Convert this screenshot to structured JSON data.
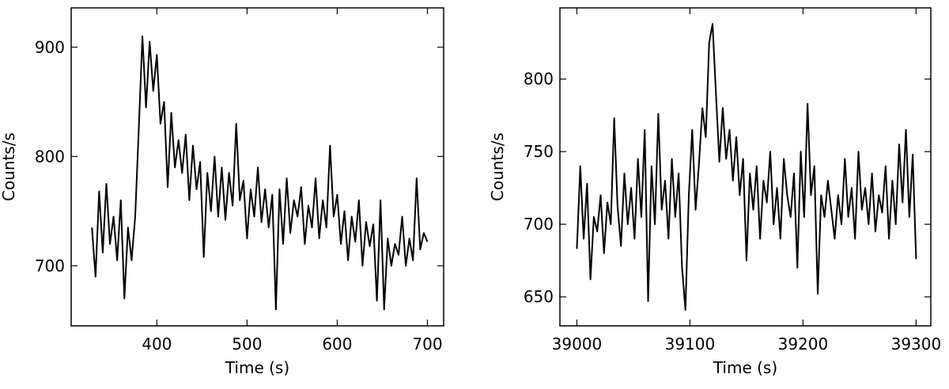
{
  "chart_data": [
    {
      "type": "line",
      "xlabel": "Time (s)",
      "ylabel": "Counts/s",
      "xlim": [
        305,
        718
      ],
      "ylim": [
        645,
        936
      ],
      "xticks": [
        400,
        500,
        600,
        700
      ],
      "yticks": [
        700,
        800,
        900
      ],
      "x": [
        328,
        332,
        336,
        340,
        344,
        348,
        352,
        356,
        360,
        364,
        368,
        372,
        376,
        380,
        384,
        388,
        392,
        396,
        400,
        404,
        408,
        412,
        416,
        420,
        424,
        428,
        432,
        436,
        440,
        444,
        448,
        452,
        456,
        460,
        464,
        468,
        472,
        476,
        480,
        484,
        488,
        492,
        496,
        500,
        504,
        508,
        512,
        516,
        520,
        524,
        528,
        532,
        536,
        540,
        544,
        548,
        552,
        556,
        560,
        564,
        568,
        572,
        576,
        580,
        584,
        588,
        592,
        596,
        600,
        604,
        608,
        612,
        616,
        620,
        624,
        628,
        632,
        636,
        640,
        644,
        648,
        652,
        656,
        660,
        664,
        668,
        672,
        676,
        680,
        684,
        688,
        692,
        696,
        700
      ],
      "series": [
        {
          "color": "#000000",
          "values": [
            735,
            690,
            768,
            712,
            775,
            720,
            745,
            705,
            760,
            670,
            735,
            705,
            745,
            826,
            910,
            845,
            905,
            860,
            893,
            830,
            850,
            772,
            840,
            790,
            815,
            785,
            820,
            760,
            810,
            770,
            795,
            708,
            785,
            750,
            800,
            745,
            790,
            742,
            785,
            755,
            830,
            760,
            778,
            725,
            770,
            745,
            790,
            740,
            770,
            735,
            765,
            660,
            770,
            720,
            780,
            730,
            760,
            745,
            772,
            720,
            755,
            735,
            780,
            725,
            760,
            735,
            810,
            745,
            765,
            720,
            750,
            705,
            745,
            722,
            760,
            700,
            740,
            718,
            738,
            668,
            760,
            660,
            725,
            700,
            720,
            710,
            745,
            700,
            725,
            705,
            780,
            715,
            730,
            722
          ]
        }
      ]
    },
    {
      "type": "line",
      "xlabel": "Time (s)",
      "ylabel": "Counts/s",
      "xlim": [
        38985,
        39313
      ],
      "ylim": [
        630,
        849
      ],
      "xticks": [
        39000,
        39100,
        39200,
        39300
      ],
      "yticks": [
        650,
        700,
        750,
        800
      ],
      "x": [
        39000,
        39003,
        39006,
        39009,
        39012,
        39015,
        39018,
        39021,
        39024,
        39027,
        39030,
        39033,
        39036,
        39039,
        39042,
        39045,
        39048,
        39051,
        39054,
        39057,
        39060,
        39063,
        39066,
        39069,
        39072,
        39075,
        39078,
        39081,
        39084,
        39087,
        39090,
        39093,
        39096,
        39099,
        39102,
        39105,
        39108,
        39111,
        39114,
        39117,
        39120,
        39123,
        39126,
        39129,
        39132,
        39135,
        39138,
        39141,
        39144,
        39147,
        39150,
        39153,
        39156,
        39159,
        39162,
        39165,
        39168,
        39171,
        39174,
        39177,
        39180,
        39183,
        39186,
        39189,
        39192,
        39195,
        39198,
        39201,
        39204,
        39207,
        39210,
        39213,
        39216,
        39219,
        39222,
        39225,
        39228,
        39231,
        39234,
        39237,
        39240,
        39243,
        39246,
        39249,
        39252,
        39255,
        39258,
        39261,
        39264,
        39267,
        39270,
        39273,
        39276,
        39279,
        39282,
        39285,
        39288,
        39291,
        39294,
        39297,
        39300
      ],
      "series": [
        {
          "color": "#000000",
          "values": [
            683,
            740,
            690,
            728,
            662,
            705,
            695,
            720,
            680,
            715,
            700,
            773,
            712,
            685,
            735,
            700,
            725,
            690,
            745,
            705,
            765,
            647,
            740,
            700,
            776,
            710,
            730,
            690,
            745,
            705,
            735,
            670,
            641,
            720,
            765,
            710,
            742,
            780,
            760,
            825,
            838,
            790,
            743,
            780,
            745,
            765,
            730,
            760,
            720,
            745,
            675,
            735,
            710,
            740,
            690,
            730,
            715,
            750,
            700,
            725,
            690,
            745,
            720,
            705,
            735,
            670,
            750,
            705,
            783,
            720,
            740,
            652,
            720,
            705,
            730,
            710,
            690,
            720,
            700,
            745,
            705,
            725,
            690,
            750,
            710,
            725,
            700,
            735,
            695,
            720,
            708,
            740,
            690,
            730,
            700,
            755,
            715,
            765,
            705,
            748,
            676
          ]
        }
      ]
    }
  ]
}
